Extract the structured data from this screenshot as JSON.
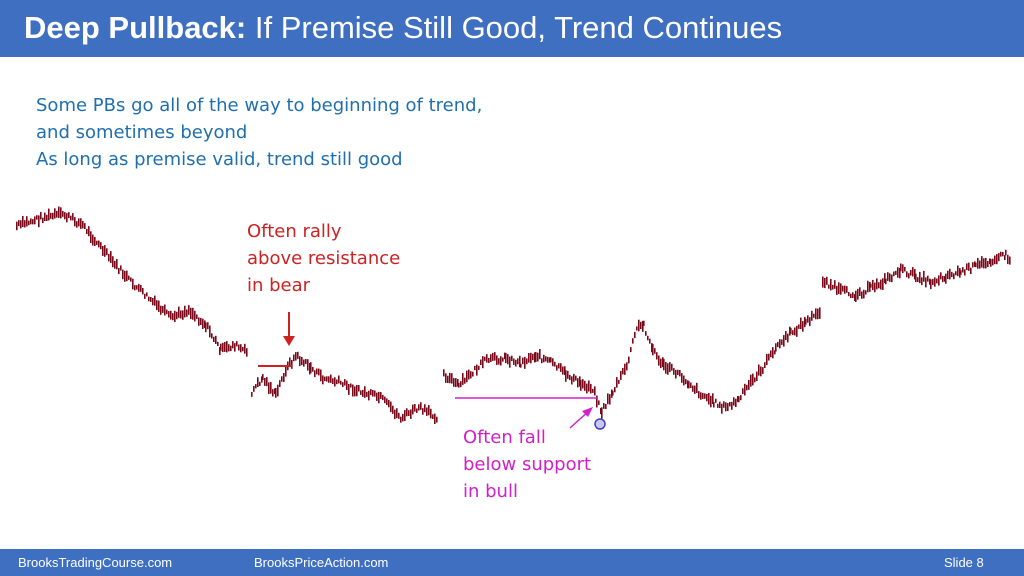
{
  "header": {
    "title_bold": "Deep Pullback:",
    "title_rest": " If Premise Still Good, Trend Continues"
  },
  "bullets": [
    "Some PBs go all of the way to beginning of trend,",
    "and sometimes beyond",
    "As long as premise valid, trend still good"
  ],
  "annotations": {
    "resistance": [
      "Often rally",
      "above resistance",
      "in bear"
    ],
    "support": [
      "Often fall",
      "below support",
      "in bull"
    ]
  },
  "footer": {
    "site1": "BrooksTradingCourse.com",
    "site2": "BrooksPriceAction.com",
    "slide": "Slide  8"
  },
  "colors": {
    "header_bg": "#3e6fc1",
    "text_blue": "#1f6fb0",
    "bars": "#7a0a1a",
    "red": "#cc2222",
    "magenta": "#d020c8"
  }
}
